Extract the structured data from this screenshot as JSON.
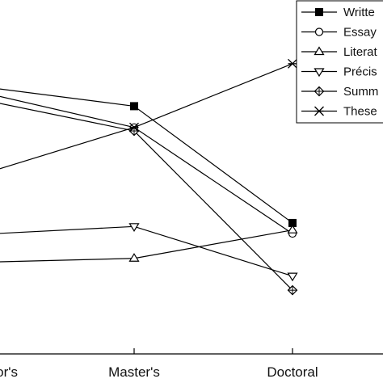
{
  "chart_data": {
    "type": "line",
    "categories": [
      "Bachelor's",
      "Master's",
      "Doctoral"
    ],
    "x_tick_labels": [
      "or's",
      "Master's",
      "Doctoral"
    ],
    "title": "",
    "xlabel": "",
    "ylabel": "",
    "ylim": [
      0,
      100
    ],
    "grid": false,
    "legend_position": "top-right",
    "series": [
      {
        "name": "Writte",
        "marker": "filled-square",
        "values": [
          75,
          70,
          37
        ]
      },
      {
        "name": "Essay",
        "marker": "open-circle",
        "values": [
          73,
          64,
          34
        ]
      },
      {
        "name": "Literat",
        "marker": "open-triangle-up",
        "values": [
          26,
          27,
          35
        ]
      },
      {
        "name": "Précis",
        "marker": "open-triangle-down",
        "values": [
          34,
          36,
          22
        ]
      },
      {
        "name": "Summ",
        "marker": "circle-plus",
        "values": [
          71,
          63,
          18
        ]
      },
      {
        "name": "These",
        "marker": "x-star",
        "values": [
          52,
          64,
          82
        ]
      }
    ]
  }
}
